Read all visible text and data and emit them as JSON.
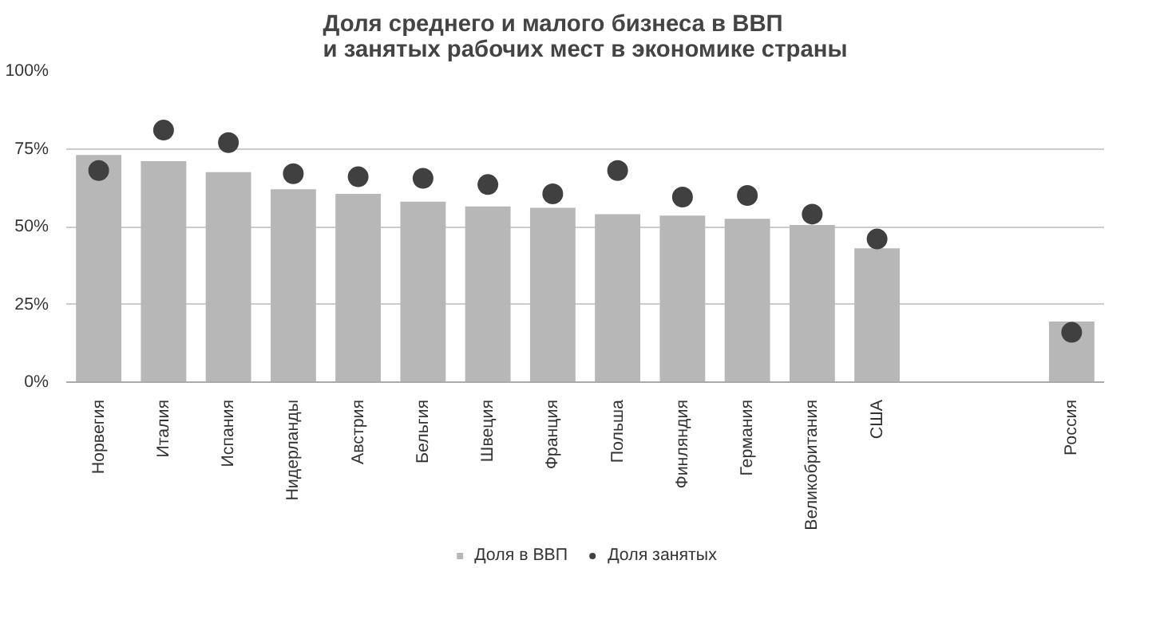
{
  "chart_data": {
    "type": "bar",
    "title": "Доля среднего и малого бизнеса в ВВП\nи занятых рабочих мест в экономике страны",
    "categories": [
      "Норвегия",
      "Италия",
      "Испания",
      "Нидерланды",
      "Австрия",
      "Бельгия",
      "Швеция",
      "Франция",
      "Польша",
      "Финляндия",
      "Германия",
      "Великобритания",
      "США",
      null,
      null,
      "Россия"
    ],
    "series": [
      {
        "name": "Доля в ВВП",
        "type": "bar",
        "color": "#b7b7b7",
        "values": [
          73,
          71,
          67.5,
          62,
          60.5,
          58,
          56.5,
          56,
          54,
          53.5,
          52.5,
          50.5,
          43,
          null,
          null,
          19.5
        ]
      },
      {
        "name": "Доля занятых",
        "type": "scatter",
        "marker": "circle",
        "color": "#404040",
        "values": [
          68,
          81,
          77,
          67,
          66,
          65.5,
          63.5,
          60.5,
          68,
          59.5,
          60,
          54,
          46,
          null,
          null,
          16
        ]
      }
    ],
    "ylim": [
      0,
      100
    ],
    "yticks": [
      {
        "value": 0,
        "label": "0%"
      },
      {
        "value": 25,
        "label": "25%"
      },
      {
        "value": 50,
        "label": "50%"
      },
      {
        "value": 75,
        "label": "75%"
      },
      {
        "value": 100,
        "label": "100%"
      }
    ],
    "grid": "y",
    "legend": "bottom"
  }
}
